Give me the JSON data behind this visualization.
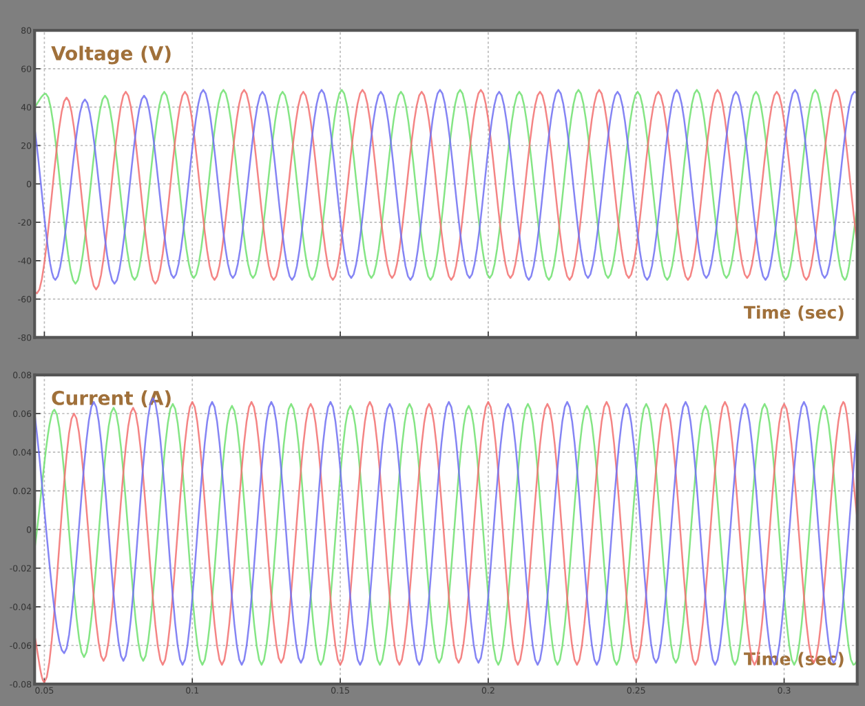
{
  "chart_data": [
    {
      "type": "line",
      "ylabel": "Voltage (V)",
      "xlabel": "Time (sec)",
      "xlim": [
        0.0467,
        0.3247
      ],
      "xticks": [
        0.05,
        0.1,
        0.15,
        0.2,
        0.25,
        0.3
      ],
      "ylim": [
        -80,
        80
      ],
      "yticks": [
        -80,
        -60,
        -40,
        -20,
        0,
        20,
        40,
        60,
        80
      ],
      "tick_labels": "y",
      "grid": true,
      "marker": "none",
      "line_style": "solid",
      "series": [
        {
          "color": "#6ee06e",
          "x": [
            0.0467,
            0.0505,
            0.0605,
            0.0705,
            0.0805,
            0.0905,
            0.1005,
            0.1105,
            0.1205,
            0.1305,
            0.1405,
            0.1505,
            0.1605,
            0.1705,
            0.1805,
            0.1905,
            0.2005,
            0.2105,
            0.2205,
            0.2305,
            0.2405,
            0.2505,
            0.2605,
            0.2705,
            0.2805,
            0.2905,
            0.3005,
            0.3105,
            0.3205,
            0.3247
          ],
          "values": [
            40,
            47,
            -52,
            46,
            -50,
            48,
            -49,
            49,
            -49,
            48,
            -50,
            49,
            -49,
            48,
            -50,
            49,
            -49,
            48,
            -50,
            49,
            -49,
            48,
            -50,
            49,
            -49,
            48,
            -50,
            49,
            -50,
            -13
          ]
        },
        {
          "color": "#f26e6e",
          "x": [
            0.0467,
            0.0475,
            0.0575,
            0.0675,
            0.0775,
            0.0875,
            0.0975,
            0.1075,
            0.1175,
            0.1275,
            0.1375,
            0.1475,
            0.1575,
            0.1675,
            0.1775,
            0.1875,
            0.1975,
            0.2075,
            0.2175,
            0.2275,
            0.2375,
            0.2475,
            0.2575,
            0.2675,
            0.2775,
            0.2875,
            0.2975,
            0.3075,
            0.3175,
            0.3247
          ],
          "values": [
            -56,
            -57,
            45,
            -55,
            48,
            -52,
            48,
            -50,
            49,
            -50,
            48,
            -50,
            49,
            -49,
            48,
            -50,
            49,
            -49,
            48,
            -50,
            49,
            -49,
            48,
            -50,
            49,
            -49,
            48,
            -50,
            49,
            -31
          ]
        },
        {
          "color": "#6e6ef2",
          "x": [
            0.0467,
            0.0537,
            0.0637,
            0.0737,
            0.0837,
            0.0937,
            0.1037,
            0.1137,
            0.1237,
            0.1337,
            0.1437,
            0.1537,
            0.1637,
            0.1737,
            0.1837,
            0.1937,
            0.2037,
            0.2137,
            0.2237,
            0.2337,
            0.2437,
            0.2537,
            0.2637,
            0.2737,
            0.2837,
            0.2937,
            0.3037,
            0.3137,
            0.3237,
            0.3247
          ],
          "values": [
            29,
            -50,
            44,
            -52,
            46,
            -49,
            49,
            -49,
            48,
            -50,
            49,
            -49,
            48,
            -50,
            49,
            -49,
            48,
            -50,
            49,
            -49,
            48,
            -50,
            49,
            -49,
            48,
            -50,
            49,
            -49,
            48,
            47
          ]
        }
      ]
    },
    {
      "type": "line",
      "ylabel": "Current (A)",
      "xlabel": "Time (sec)",
      "xlim": [
        0.0467,
        0.3247
      ],
      "xticks": [
        0.05,
        0.1,
        0.15,
        0.2,
        0.25,
        0.3
      ],
      "ylim": [
        -0.08,
        0.08
      ],
      "yticks": [
        -0.08,
        -0.06,
        -0.04,
        -0.02,
        0,
        0.02,
        0.04,
        0.06,
        0.08
      ],
      "grid": true,
      "marker": "none",
      "line_style": "solid",
      "series": [
        {
          "color": "#6ee06e",
          "x": [
            0.0467,
            0.0534,
            0.0634,
            0.0734,
            0.0834,
            0.0934,
            0.1034,
            0.1134,
            0.1234,
            0.1334,
            0.1434,
            0.1534,
            0.1634,
            0.1734,
            0.1834,
            0.1934,
            0.2034,
            0.2134,
            0.2234,
            0.2334,
            0.2434,
            0.2534,
            0.2634,
            0.2734,
            0.2834,
            0.2934,
            0.3034,
            0.3134,
            0.3234,
            0.3247
          ],
          "values": [
            -0.01,
            0.062,
            -0.066,
            0.063,
            -0.068,
            0.065,
            -0.07,
            0.064,
            -0.07,
            0.065,
            -0.07,
            0.064,
            -0.07,
            0.065,
            -0.069,
            0.064,
            -0.07,
            0.065,
            -0.07,
            0.064,
            -0.07,
            0.065,
            -0.069,
            0.064,
            -0.07,
            0.065,
            -0.07,
            0.064,
            -0.07,
            -0.068
          ]
        },
        {
          "color": "#f26e6e",
          "x": [
            0.0467,
            0.05,
            0.06,
            0.07,
            0.08,
            0.09,
            0.1,
            0.11,
            0.12,
            0.13,
            0.14,
            0.15,
            0.16,
            0.17,
            0.18,
            0.19,
            0.2,
            0.21,
            0.22,
            0.23,
            0.24,
            0.25,
            0.26,
            0.27,
            0.28,
            0.29,
            0.3,
            0.31,
            0.32,
            0.3247
          ],
          "values": [
            -0.055,
            -0.079,
            0.06,
            -0.068,
            0.063,
            -0.07,
            0.066,
            -0.07,
            0.066,
            -0.069,
            0.065,
            -0.07,
            0.066,
            -0.07,
            0.065,
            -0.069,
            0.066,
            -0.07,
            0.065,
            -0.07,
            0.066,
            -0.069,
            0.065,
            -0.07,
            0.066,
            -0.07,
            0.065,
            -0.069,
            0.066,
            0.006
          ]
        },
        {
          "color": "#6e6ef2",
          "x": [
            0.0467,
            0.0567,
            0.0667,
            0.0767,
            0.0867,
            0.0967,
            0.1067,
            0.1167,
            0.1267,
            0.1367,
            0.1467,
            0.1567,
            0.1667,
            0.1767,
            0.1867,
            0.1967,
            0.2067,
            0.2167,
            0.2267,
            0.2367,
            0.2467,
            0.2567,
            0.2667,
            0.2767,
            0.2867,
            0.2967,
            0.3067,
            0.3167,
            0.3247
          ],
          "values": [
            0.06,
            -0.064,
            0.066,
            -0.068,
            0.068,
            -0.07,
            0.066,
            -0.07,
            0.066,
            -0.069,
            0.066,
            -0.07,
            0.065,
            -0.07,
            0.066,
            -0.069,
            0.065,
            -0.07,
            0.066,
            -0.07,
            0.065,
            -0.069,
            0.066,
            -0.07,
            0.065,
            -0.07,
            0.066,
            -0.069,
            0.053
          ]
        }
      ]
    }
  ]
}
